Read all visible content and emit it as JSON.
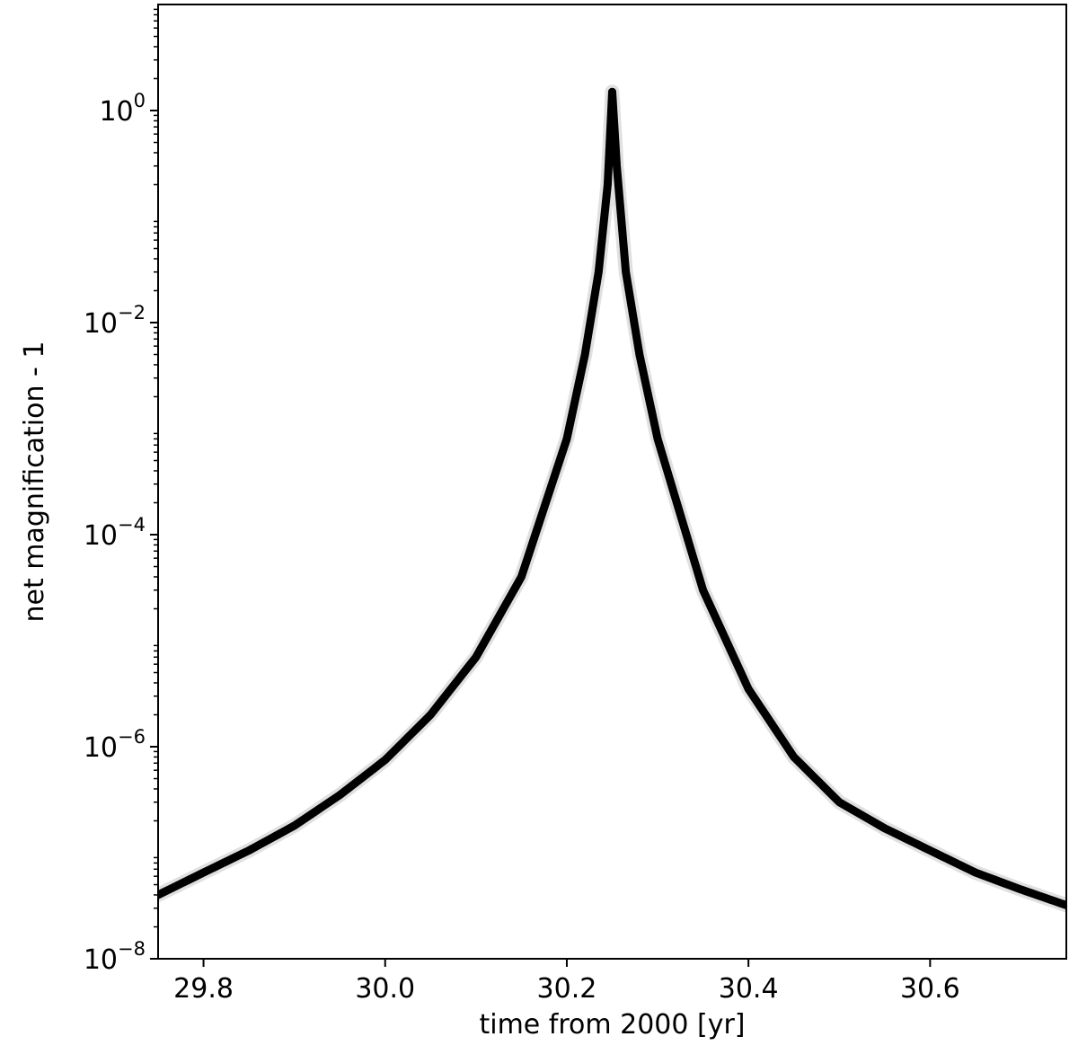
{
  "chart_data": {
    "type": "line",
    "title": "",
    "xlabel": "time from 2000 [yr]",
    "ylabel": "net magnification - 1",
    "xlim": [
      29.75,
      30.75
    ],
    "ylim": [
      1e-08,
      10
    ],
    "yscale": "log",
    "grid": false,
    "legend": "none",
    "line_color": "#000000",
    "x_ticks": [
      {
        "value": 29.8,
        "label": "29.8"
      },
      {
        "value": 30.0,
        "label": "30.0"
      },
      {
        "value": 30.2,
        "label": "30.2"
      },
      {
        "value": 30.4,
        "label": "30.4"
      },
      {
        "value": 30.6,
        "label": "30.6"
      }
    ],
    "y_ticks": [
      {
        "value": 1e-08,
        "base": "10",
        "exp": "−8"
      },
      {
        "value": 1e-06,
        "base": "10",
        "exp": "−6"
      },
      {
        "value": 0.0001,
        "base": "10",
        "exp": "−4"
      },
      {
        "value": 0.01,
        "base": "10",
        "exp": "−2"
      },
      {
        "value": 1,
        "base": "10",
        "exp": "0"
      }
    ],
    "series": [
      {
        "x": [
          29.75,
          29.8,
          29.85,
          29.9,
          29.95,
          30.0,
          30.05,
          30.1,
          30.15,
          30.2,
          30.22,
          30.235,
          30.245,
          30.25,
          30.255,
          30.265,
          30.28,
          30.3,
          30.35,
          30.4,
          30.45,
          30.5,
          30.55,
          30.6,
          30.65,
          30.7,
          30.75
        ],
        "y": [
          4e-08,
          6.5e-08,
          1.05e-07,
          1.8e-07,
          3.5e-07,
          7.5e-07,
          2e-06,
          7e-06,
          4e-05,
          0.0008,
          0.005,
          0.03,
          0.2,
          1.5,
          0.3,
          0.03,
          0.005,
          0.0008,
          3e-05,
          3.5e-06,
          8e-07,
          3e-07,
          1.7e-07,
          1.05e-07,
          6.5e-08,
          4.5e-08,
          3.2e-08
        ]
      }
    ]
  }
}
